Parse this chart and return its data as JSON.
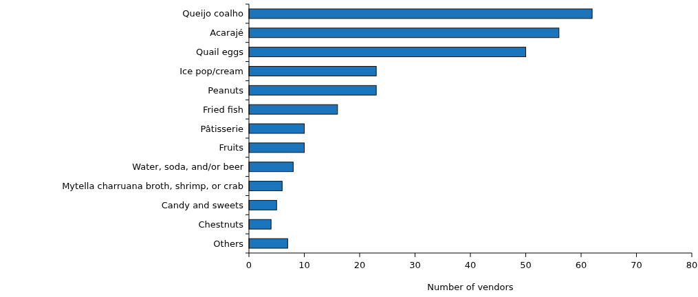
{
  "chart_data": {
    "type": "bar",
    "orientation": "horizontal",
    "xlabel": "Number of vendors",
    "categories": [
      "Queijo coalho",
      "Acarajé",
      "Quail eggs",
      "Ice pop/cream",
      "Peanuts",
      "Fried fish",
      "Pâtisserie",
      "Fruits",
      "Water, soda, and/or beer",
      "Mytella charruana broth, shrimp, or crab",
      "Candy and sweets",
      "Chestnuts",
      "Others"
    ],
    "values": [
      62,
      56,
      50,
      23,
      23,
      16,
      10,
      10,
      8,
      6,
      5,
      4,
      7
    ],
    "color": "#1a75bc",
    "xlim": [
      0,
      80
    ],
    "xticks": [
      0,
      10,
      20,
      30,
      40,
      50,
      60,
      70,
      80
    ],
    "grid": false
  }
}
